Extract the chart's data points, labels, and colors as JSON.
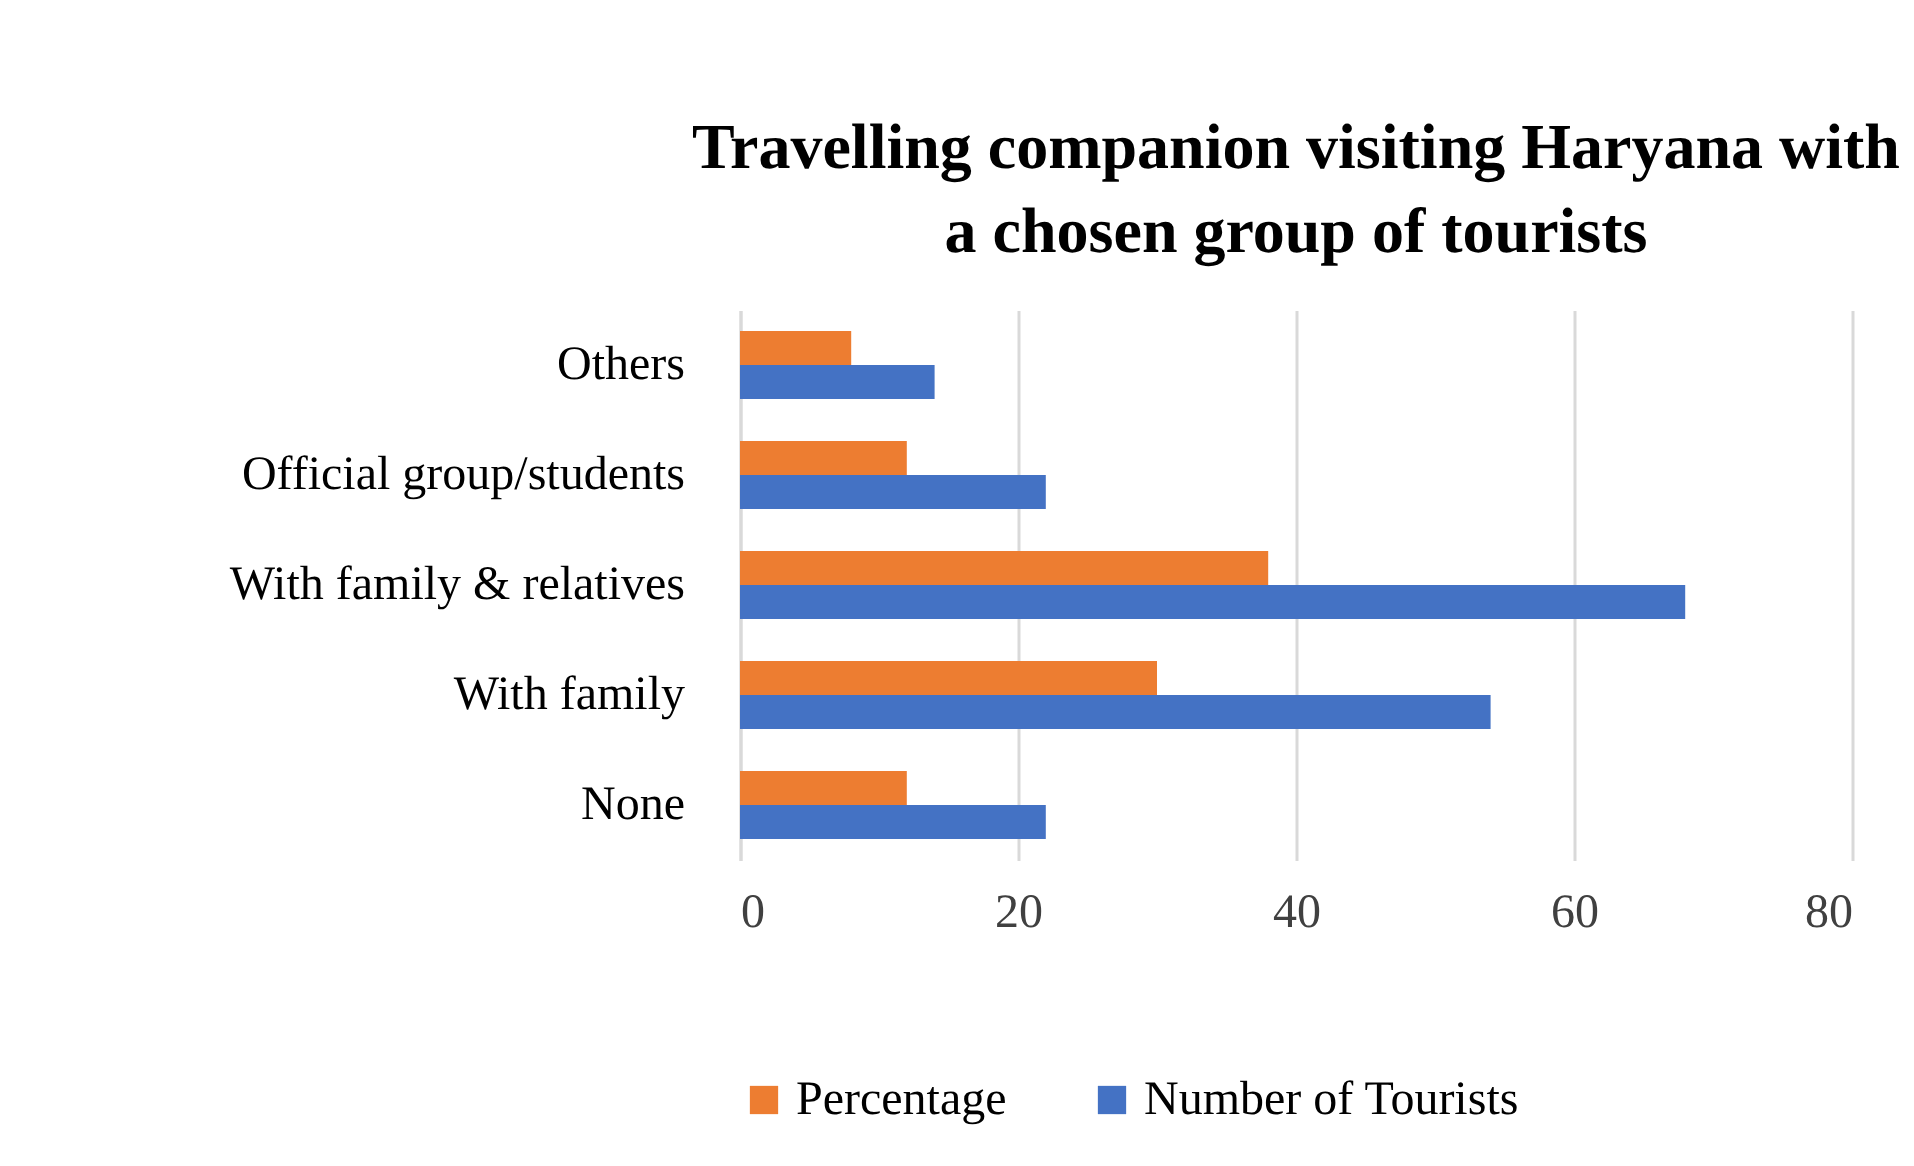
{
  "chart_data": {
    "type": "bar",
    "orientation": "horizontal",
    "title": "Travelling companion visiting Haryana with a chosen group of tourists",
    "categories": [
      "Others",
      "Official group/students",
      "With family & relatives",
      "With family",
      "None"
    ],
    "series": [
      {
        "name": "Percentage",
        "color": "#ed7d31",
        "values": [
          8,
          12,
          38,
          30,
          12
        ]
      },
      {
        "name": "Number of Tourists",
        "color": "#4472c4",
        "values": [
          14,
          22,
          68,
          54,
          22
        ]
      }
    ],
    "xlim": [
      0,
      80
    ],
    "xticks": [
      0,
      20,
      40,
      60,
      80
    ],
    "grid": "x",
    "legend": "bottom"
  }
}
